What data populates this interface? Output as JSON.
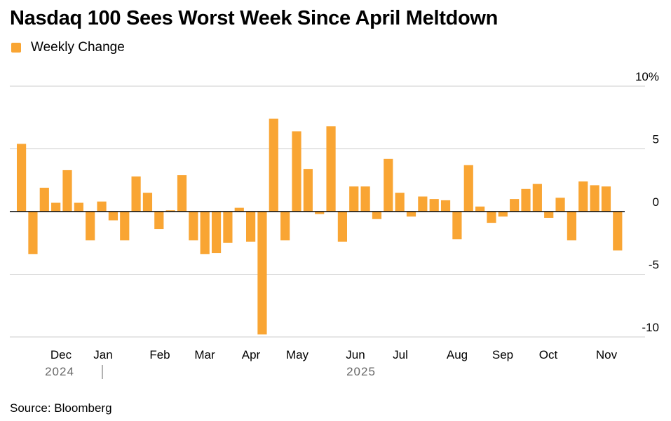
{
  "title": "Nasdaq 100 Sees Worst Week Since April Meltdown",
  "legend_label": "Weekly Change",
  "source": "Source: Bloomberg",
  "colors": {
    "bar": "#f9a533",
    "grid": "#cccccc",
    "zero": "#000000"
  },
  "chart_data": {
    "type": "bar",
    "title": "Nasdaq 100 Sees Worst Week Since April Meltdown",
    "xlabel": "",
    "ylabel": "",
    "ylim": [
      -10,
      10
    ],
    "y_ticks": [
      10,
      5,
      0,
      -5,
      -10
    ],
    "y_tick_labels": [
      "10%",
      "5",
      "0",
      "-5",
      "-10"
    ],
    "x_tick_labels": [
      "Dec",
      "Jan",
      "Feb",
      "Mar",
      "Apr",
      "May",
      "Jun",
      "Jul",
      "Aug",
      "Sep",
      "Oct",
      "Nov"
    ],
    "year_labels": [
      "2024",
      "2025"
    ],
    "legend": "top-left",
    "grid": true,
    "series": [
      {
        "name": "Weekly Change",
        "values": [
          5.4,
          -3.4,
          1.9,
          0.7,
          3.3,
          0.7,
          -2.3,
          0.8,
          -0.7,
          -2.3,
          2.8,
          1.5,
          -1.4,
          0.1,
          2.9,
          -2.3,
          -3.4,
          -3.3,
          -2.5,
          0.3,
          -2.4,
          -9.8,
          7.4,
          -2.3,
          6.4,
          3.4,
          -0.2,
          6.8,
          -2.4,
          2.0,
          2.0,
          -0.6,
          4.2,
          1.5,
          -0.4,
          1.2,
          1.0,
          0.9,
          -2.2,
          3.7,
          0.4,
          -0.9,
          -0.4,
          1.0,
          1.8,
          2.2,
          -0.5,
          1.1,
          -2.3,
          2.4,
          2.1,
          2.0,
          -3.1
        ]
      }
    ]
  }
}
